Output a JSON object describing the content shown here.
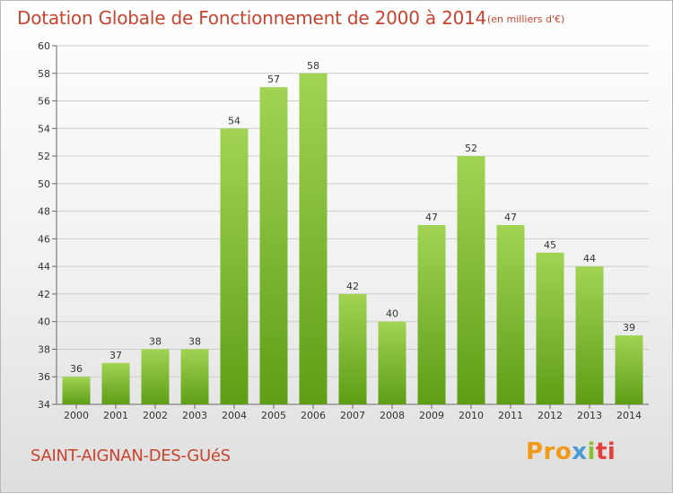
{
  "header": {
    "title": "Dotation Globale de Fonctionnement de 2000 à 2014",
    "subtitle": "(en milliers d'€)"
  },
  "footer": {
    "commune": "SAINT-AIGNAN-DES-GUéS",
    "logo": [
      "Pro",
      "x",
      "i",
      "ti"
    ]
  },
  "colors": {
    "bar_light": "#a2d354",
    "bar_dark": "#5e9e15",
    "title": "#c8442e",
    "grid": "#cccccc"
  },
  "chart_data": {
    "type": "bar",
    "title": "Dotation Globale de Fonctionnement de 2000 à 2014",
    "subtitle": "(en milliers d'€)",
    "xlabel": "",
    "ylabel": "",
    "categories": [
      "2000",
      "2001",
      "2002",
      "2003",
      "2004",
      "2005",
      "2006",
      "2007",
      "2008",
      "2009",
      "2010",
      "2011",
      "2012",
      "2013",
      "2014"
    ],
    "values": [
      36,
      37,
      38,
      38,
      54,
      57,
      58,
      42,
      40,
      47,
      52,
      47,
      45,
      44,
      39
    ],
    "ylim": [
      34,
      60
    ],
    "yticks": [
      34,
      36,
      38,
      40,
      42,
      44,
      46,
      48,
      50,
      52,
      54,
      56,
      58,
      60
    ],
    "grid": true,
    "legend": "none"
  }
}
